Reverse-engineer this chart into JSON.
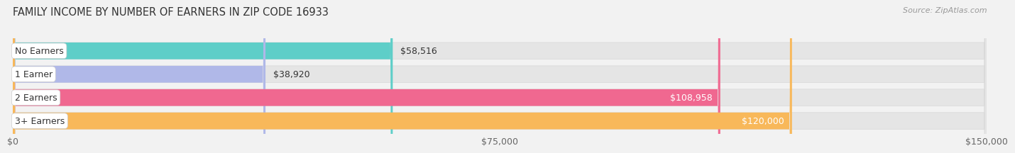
{
  "title": "FAMILY INCOME BY NUMBER OF EARNERS IN ZIP CODE 16933",
  "source": "Source: ZipAtlas.com",
  "categories": [
    "No Earners",
    "1 Earner",
    "2 Earners",
    "3+ Earners"
  ],
  "values": [
    58516,
    38920,
    108958,
    120000
  ],
  "bar_colors": [
    "#5ecec8",
    "#b0b8e8",
    "#f06890",
    "#f8b85a"
  ],
  "value_labels": [
    "$58,516",
    "$38,920",
    "$108,958",
    "$120,000"
  ],
  "value_label_colors": [
    "#444444",
    "#444444",
    "#ffffff",
    "#ffffff"
  ],
  "value_label_inside": [
    false,
    false,
    true,
    true
  ],
  "xlim": [
    0,
    150000
  ],
  "xticks": [
    0,
    75000,
    150000
  ],
  "xticklabels": [
    "$0",
    "$75,000",
    "$150,000"
  ],
  "background_color": "#f2f2f2",
  "bar_bg_color": "#e5e5e5",
  "title_fontsize": 10.5,
  "source_fontsize": 8,
  "tick_fontsize": 9,
  "label_fontsize": 9,
  "value_fontsize": 9,
  "bar_height": 0.72,
  "bar_gap": 0.18
}
